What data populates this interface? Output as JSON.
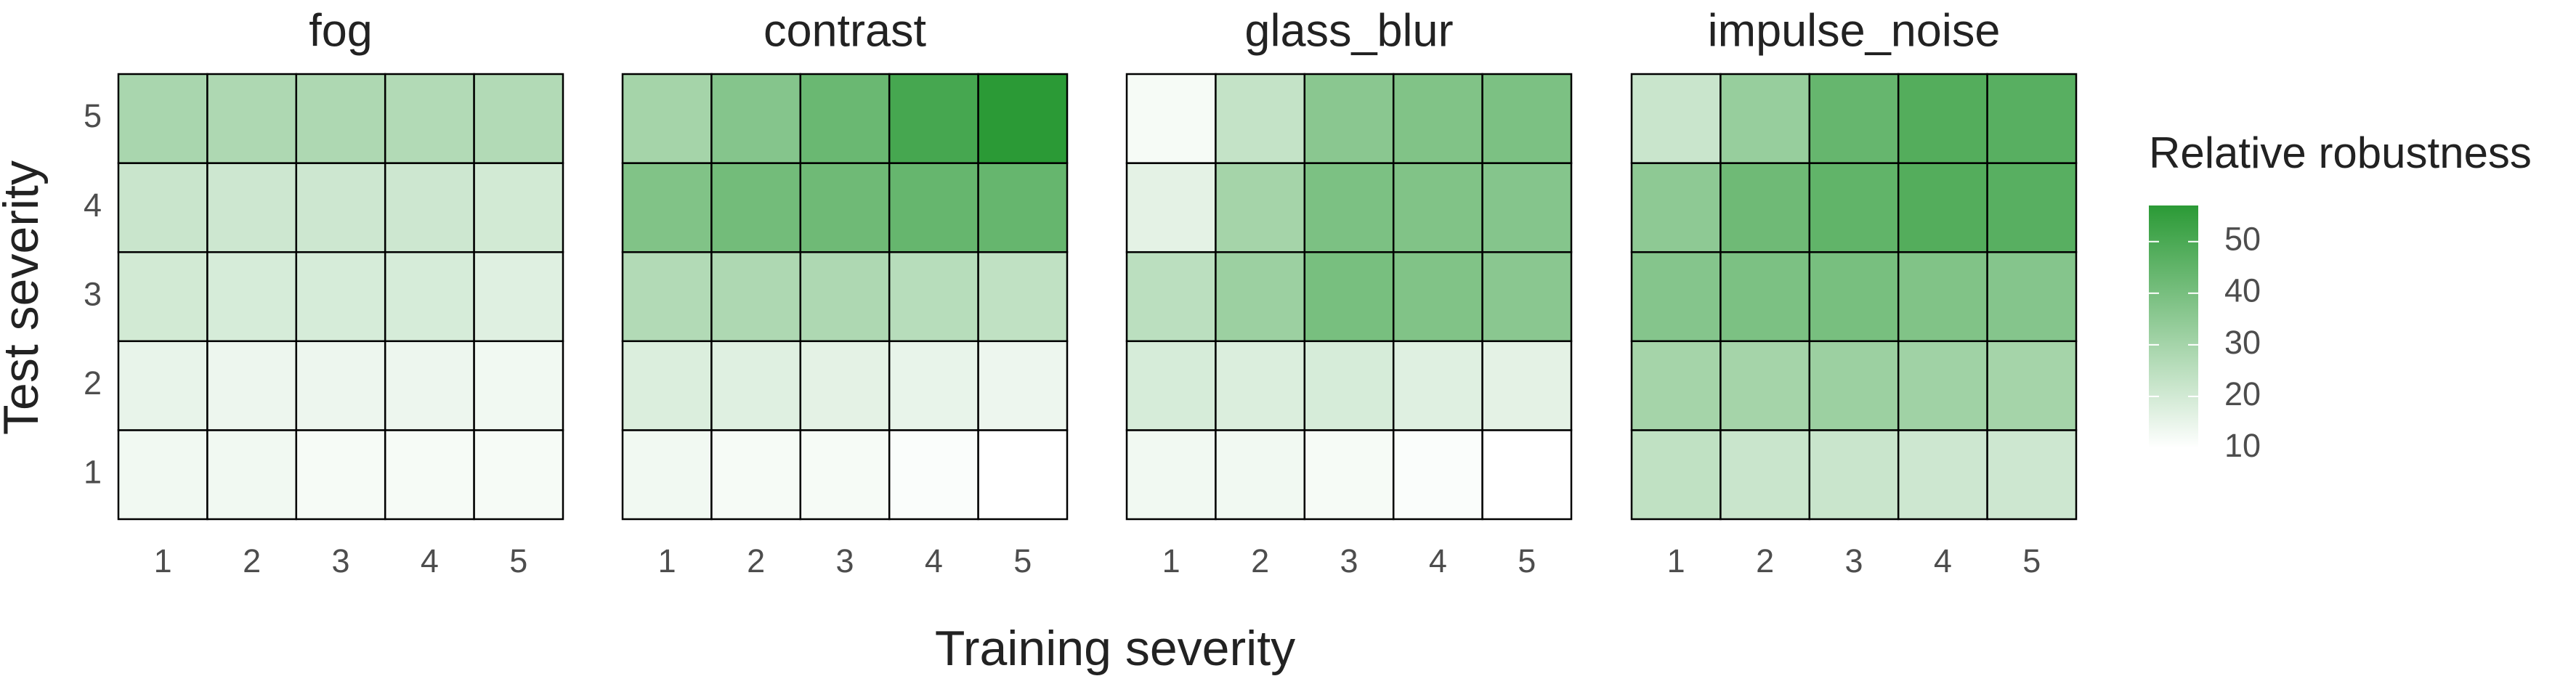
{
  "chart_data": {
    "type": "heatmap",
    "x_label": "Training severity",
    "y_label": "Test severity",
    "x": [
      1,
      2,
      3,
      4,
      5
    ],
    "y": [
      1,
      2,
      3,
      4,
      5
    ],
    "panels": [
      {
        "title": "fog",
        "values": [
          [
            13,
            13,
            12,
            12,
            12
          ],
          [
            15,
            14,
            14,
            14,
            13
          ],
          [
            20,
            19,
            19,
            19,
            17
          ],
          [
            22,
            21,
            21,
            21,
            20
          ],
          [
            29,
            28,
            28,
            27,
            27
          ]
        ]
      },
      {
        "title": "contrast",
        "values": [
          [
            13,
            12,
            12,
            11,
            10
          ],
          [
            18,
            17,
            16,
            15,
            14
          ],
          [
            27,
            28,
            28,
            26,
            24
          ],
          [
            38,
            41,
            42,
            44,
            44
          ],
          [
            30,
            37,
            43,
            51,
            57
          ]
        ]
      },
      {
        "title": "glass_blur",
        "values": [
          [
            13,
            13,
            12,
            11,
            10
          ],
          [
            19,
            18,
            19,
            17,
            16
          ],
          [
            25,
            32,
            40,
            38,
            36
          ],
          [
            16,
            30,
            39,
            38,
            37
          ],
          [
            12,
            23,
            36,
            38,
            39
          ]
        ]
      },
      {
        "title": "impulse_noise",
        "values": [
          [
            24,
            22,
            22,
            21,
            21
          ],
          [
            30,
            30,
            32,
            31,
            30
          ],
          [
            37,
            39,
            40,
            38,
            37
          ],
          [
            35,
            42,
            45,
            48,
            47
          ],
          [
            22,
            33,
            44,
            48,
            47
          ]
        ]
      }
    ],
    "legend": {
      "title": "Relative robustness",
      "lim": [
        10,
        57
      ],
      "ticks": [
        10,
        20,
        30,
        40,
        50
      ],
      "low_color": "#ffffff",
      "high_color": "#2b9a36"
    }
  }
}
